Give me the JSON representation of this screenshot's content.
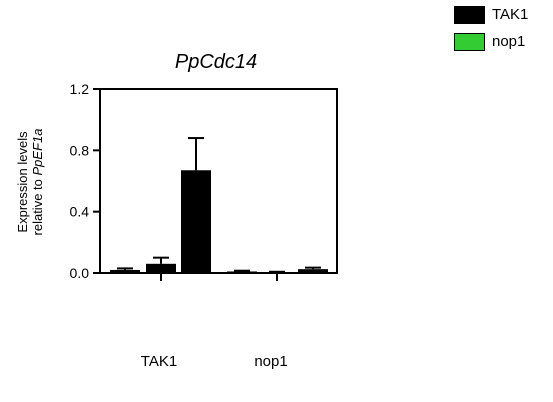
{
  "chart_data": {
    "type": "bar",
    "title": "PpCdc14",
    "ylabel_line1": "Expression levels",
    "ylabel_line2_prefix": "relative to ",
    "ylabel_line2_italic": "PpEF1a",
    "ylim": [
      0,
      1.2
    ],
    "yticks": [
      "0.0",
      "0.4",
      "0.8",
      "1.2"
    ],
    "ytick_values": [
      0,
      0.4,
      0.8,
      1.2
    ],
    "groups": [
      "TAK1",
      "nop1"
    ],
    "legend": [
      {
        "name": "TAK1",
        "color": "#000000"
      },
      {
        "name": "nop1",
        "color": "#33cc33"
      }
    ],
    "bars": [
      {
        "group": "TAK1",
        "value": 0.02,
        "error": 0.01
      },
      {
        "group": "TAK1",
        "value": 0.06,
        "error": 0.04
      },
      {
        "group": "TAK1",
        "value": 0.67,
        "error": 0.21
      },
      {
        "group": "nop1",
        "value": 0.01,
        "error": 0.005
      },
      {
        "group": "nop1",
        "value": 0.005,
        "error": 0.003
      },
      {
        "group": "nop1",
        "value": 0.025,
        "error": 0.01
      }
    ],
    "bar_color": "#000000",
    "grid": false,
    "legend_position": "top-right"
  }
}
